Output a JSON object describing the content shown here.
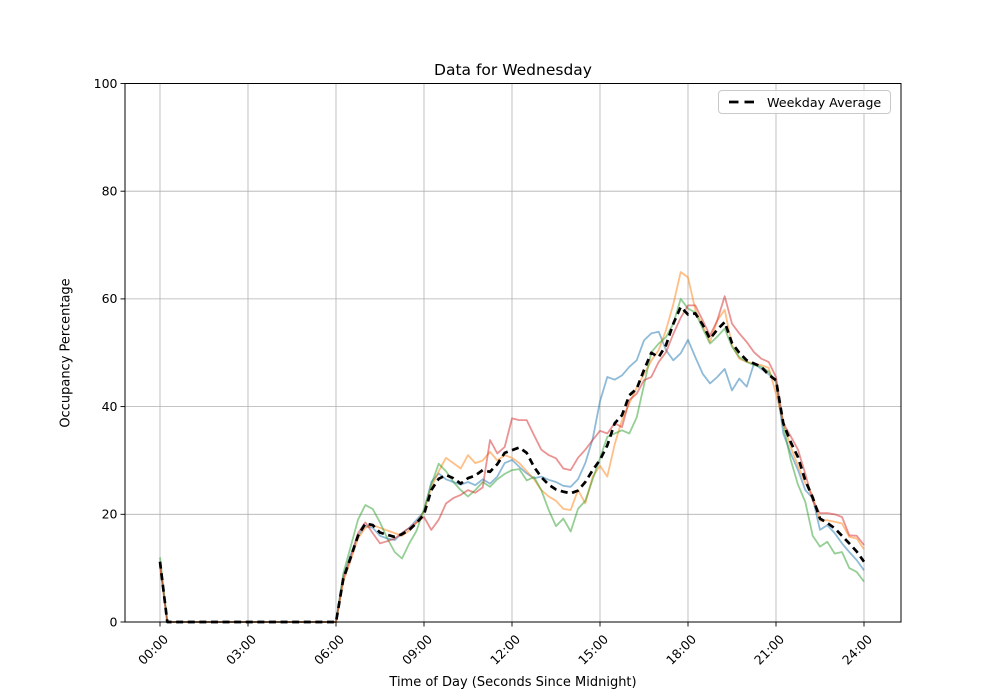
{
  "chart_data": {
    "type": "line",
    "title": "Data for Wednesday",
    "xlabel": "Time of Day (Seconds Since Midnight)",
    "ylabel": "Occupancy Percentage",
    "ylim": [
      0,
      100
    ],
    "xlim_seconds": [
      0,
      86400
    ],
    "grid": true,
    "grid_color": "#b0b0b0",
    "spine_color": "#000000",
    "legend_position": "upper right",
    "legend": [
      {
        "label": "Weekday Average",
        "style": "dashed",
        "color": "#000000"
      }
    ],
    "y_ticks": [
      0,
      20,
      40,
      60,
      80,
      100
    ],
    "x_ticks": [
      {
        "seconds": 0,
        "label": "00:00"
      },
      {
        "seconds": 10800,
        "label": "03:00"
      },
      {
        "seconds": 21600,
        "label": "06:00"
      },
      {
        "seconds": 32400,
        "label": "09:00"
      },
      {
        "seconds": 43200,
        "label": "12:00"
      },
      {
        "seconds": 54000,
        "label": "15:00"
      },
      {
        "seconds": 64800,
        "label": "18:00"
      },
      {
        "seconds": 75600,
        "label": "21:00"
      },
      {
        "seconds": 86400,
        "label": "24:00"
      }
    ],
    "x_seconds": [
      0,
      900,
      1800,
      2700,
      3600,
      4500,
      5400,
      6300,
      7200,
      8100,
      9000,
      9900,
      10800,
      11700,
      12600,
      13500,
      14400,
      15300,
      16200,
      17100,
      18000,
      18900,
      19800,
      20700,
      21600,
      22500,
      23400,
      24300,
      25200,
      26100,
      27000,
      27900,
      28800,
      29700,
      30600,
      31500,
      32400,
      33300,
      34200,
      35100,
      36000,
      36900,
      37800,
      38700,
      39600,
      40500,
      41400,
      42300,
      43200,
      44100,
      45000,
      45900,
      46800,
      47700,
      48600,
      49500,
      50400,
      51300,
      52200,
      53100,
      54000,
      54900,
      55800,
      56700,
      57600,
      58500,
      59400,
      60300,
      61200,
      62100,
      63000,
      63900,
      64800,
      65700,
      66600,
      67500,
      68400,
      69300,
      70200,
      71100,
      72000,
      72900,
      73800,
      74700,
      75600,
      76500,
      77400,
      78300,
      79200,
      80100,
      81000,
      81900,
      82800,
      83700,
      84600,
      85500,
      86400
    ],
    "series": [
      {
        "id": "day-1",
        "color": "#1f77b4",
        "alpha": 0.5,
        "width": 1.8,
        "dash": "solid",
        "values": [
          11,
          0,
          0,
          0,
          0,
          0,
          0,
          0,
          0,
          0,
          0,
          0,
          0,
          0,
          0,
          0,
          0,
          0,
          0,
          0,
          0,
          0,
          0,
          0,
          0,
          8.5,
          12.5,
          16,
          17.8,
          17.5,
          16,
          15.5,
          15.2,
          16.5,
          17.5,
          19,
          20.5,
          26,
          27.6,
          26.5,
          26,
          25.5,
          26,
          25.4,
          26.5,
          25.7,
          27,
          29.5,
          30.1,
          28.8,
          27.6,
          26.7,
          27,
          26.4,
          26,
          25.3,
          25.1,
          26.5,
          29.5,
          34,
          41,
          45.5,
          45,
          45.8,
          47.4,
          48.6,
          52.3,
          53.6,
          53.9,
          50.5,
          48.6,
          49.9,
          52.4,
          49.2,
          46.1,
          44.3,
          45.5,
          47,
          43,
          45.2,
          43.7,
          48,
          47,
          46,
          44.9,
          35,
          31.3,
          28.2,
          24.5,
          23,
          17.1,
          18,
          16.5,
          14.6,
          13,
          11.5,
          9.6
        ]
      },
      {
        "id": "day-2",
        "color": "#ff7f0e",
        "alpha": 0.5,
        "width": 1.8,
        "dash": "solid",
        "values": [
          10.5,
          0,
          0,
          0,
          0,
          0,
          0,
          0,
          0,
          0,
          0,
          0,
          0,
          0,
          0,
          0,
          0,
          0,
          0,
          0,
          0,
          0,
          0,
          0,
          0,
          7.5,
          11.5,
          15.5,
          17.5,
          18,
          17.5,
          17,
          16.5,
          16,
          17,
          18.5,
          20.5,
          25,
          28,
          30.5,
          29.5,
          28.5,
          31,
          29.5,
          30,
          31.6,
          30,
          31,
          30.5,
          29.5,
          28,
          26.5,
          24.5,
          23.3,
          22.5,
          21,
          20.8,
          24.5,
          22,
          27,
          29,
          27,
          33,
          37.5,
          40.6,
          43.5,
          46,
          48.5,
          50.5,
          54.2,
          59,
          65,
          64,
          58,
          55,
          52,
          56,
          58,
          51.4,
          48.9,
          48.3,
          48,
          47.7,
          47.2,
          42.4,
          37,
          32.5,
          29,
          25.8,
          23.5,
          18.8,
          18.9,
          18.6,
          18.3,
          15.8,
          15.5,
          13.5
        ]
      },
      {
        "id": "day-3",
        "color": "#2ca02c",
        "alpha": 0.5,
        "width": 1.8,
        "dash": "solid",
        "values": [
          12,
          0,
          0,
          0,
          0,
          0,
          0,
          0,
          0,
          0,
          0,
          0,
          0,
          0,
          0,
          0,
          0,
          0,
          0,
          0,
          0,
          0,
          0,
          0,
          0,
          9,
          14,
          19,
          21.7,
          21,
          18.5,
          15.5,
          13,
          11.8,
          14.6,
          17,
          21,
          25.5,
          29.4,
          28,
          26,
          24.5,
          23.3,
          24.5,
          26,
          25.1,
          26.5,
          27.5,
          28.2,
          28.4,
          26.3,
          26.9,
          24.5,
          20.8,
          17.8,
          19.2,
          16.8,
          21,
          22.5,
          26.5,
          30.4,
          34.4,
          35,
          35.6,
          35,
          38,
          44,
          50.1,
          51.7,
          52.9,
          55.4,
          60,
          58.2,
          57.5,
          54.5,
          51.7,
          53,
          54.5,
          51.1,
          49.2,
          48.3,
          47.7,
          47.4,
          46.5,
          44.5,
          36.5,
          30.1,
          25.5,
          22.3,
          16,
          14,
          14.9,
          12.7,
          13,
          10,
          9.3,
          7.5
        ]
      },
      {
        "id": "day-4",
        "color": "#d62728",
        "alpha": 0.5,
        "width": 1.8,
        "dash": "solid",
        "values": [
          10.5,
          0,
          0,
          0,
          0,
          0,
          0,
          0,
          0,
          0,
          0,
          0,
          0,
          0,
          0,
          0,
          0,
          0,
          0,
          0,
          0,
          0,
          0,
          0,
          0,
          8,
          12,
          16.5,
          18.5,
          16.5,
          14.6,
          15,
          15.5,
          16.5,
          17.5,
          18.5,
          19.5,
          17.1,
          19,
          22,
          23,
          23.6,
          24.5,
          24,
          25,
          33.8,
          31.3,
          32.5,
          37.8,
          37.5,
          37.5,
          34.7,
          32,
          31,
          30.4,
          28.5,
          28.2,
          30.5,
          32,
          33.8,
          35.5,
          35,
          36.9,
          36.2,
          41.2,
          42.4,
          44.9,
          45.5,
          48.3,
          50.1,
          53.5,
          56.5,
          58.8,
          58.8,
          56,
          53.2,
          56,
          60.5,
          55.4,
          53.6,
          52,
          50.1,
          48.9,
          48.3,
          45.5,
          36.9,
          34.5,
          32,
          27.5,
          22.5,
          20.2,
          20.2,
          20,
          19.5,
          16.1,
          16,
          14.3
        ]
      },
      {
        "id": "weekday-average",
        "label": "Weekday Average",
        "color": "#000000",
        "alpha": 1,
        "width": 2.7,
        "dash": "dashed",
        "values": [
          11.2,
          0,
          0,
          0,
          0,
          0,
          0,
          0,
          0,
          0,
          0,
          0,
          0,
          0,
          0,
          0,
          0,
          0,
          0,
          0,
          0,
          0,
          0,
          0,
          0,
          8,
          12,
          16,
          18.3,
          18,
          16.6,
          16.2,
          15.8,
          16.3,
          17.1,
          18.4,
          20,
          24.5,
          26.6,
          27.3,
          26.7,
          25.7,
          26.7,
          27.2,
          28.2,
          27.9,
          29.3,
          31.4,
          31.9,
          32.4,
          31.4,
          28.8,
          26.9,
          25.5,
          24.6,
          24.2,
          23.9,
          24.4,
          26,
          28.2,
          30.1,
          32.8,
          36.9,
          38.4,
          42.1,
          43.3,
          46.8,
          50,
          49.2,
          51.4,
          55.4,
          58.5,
          57.1,
          57.3,
          55.2,
          52.6,
          54.3,
          55.7,
          51.8,
          50,
          48.6,
          48,
          47.4,
          45.9,
          44.9,
          36.9,
          33.4,
          30.6,
          26.3,
          23.1,
          19.2,
          18.4,
          17.4,
          16,
          14.6,
          13.1,
          11.2
        ]
      }
    ]
  }
}
